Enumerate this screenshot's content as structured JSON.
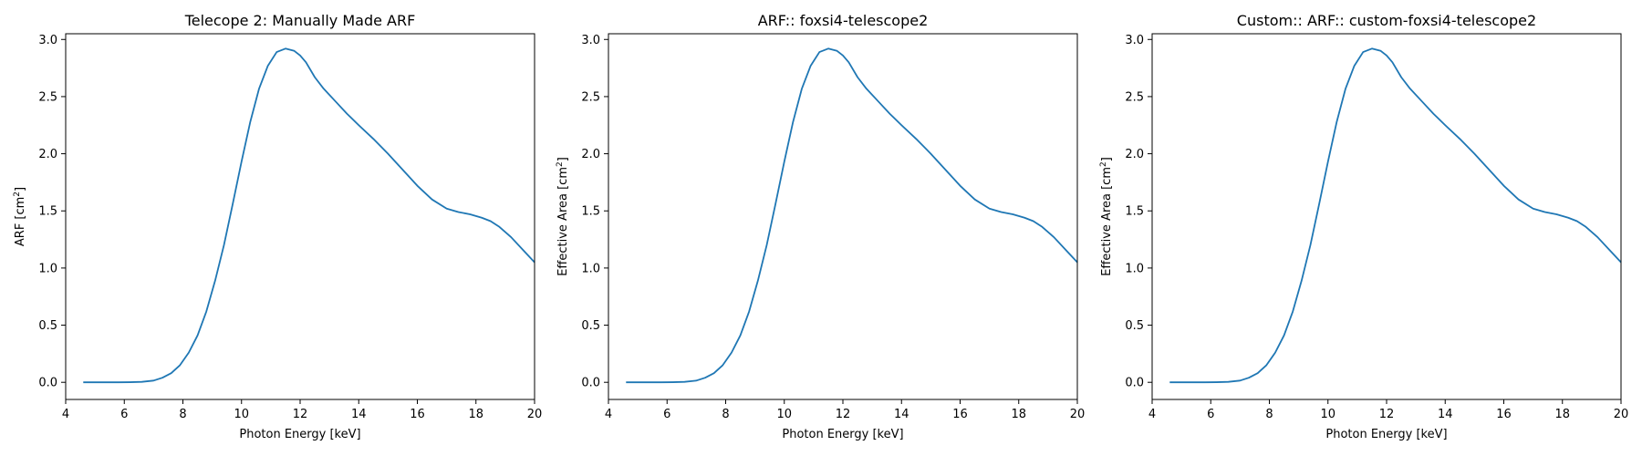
{
  "chart_data": [
    {
      "type": "line",
      "title": "Telecope 2: Manually Made ARF",
      "xlabel": "Photon Energy [keV]",
      "ylabel": "ARF [cm",
      "ylabel_sup": "2",
      "ylabel_end": "]",
      "xlim": [
        4,
        20
      ],
      "ylim": [
        -0.15,
        3.05
      ],
      "xticks": [
        4,
        6,
        8,
        10,
        12,
        14,
        16,
        18,
        20
      ],
      "yticks": [
        0.0,
        0.5,
        1.0,
        1.5,
        2.0,
        2.5,
        3.0
      ],
      "xtick_labels": [
        "4",
        "6",
        "8",
        "10",
        "12",
        "14",
        "16",
        "18",
        "20"
      ],
      "ytick_labels": [
        "0.0",
        "0.5",
        "1.0",
        "1.5",
        "2.0",
        "2.5",
        "3.0"
      ],
      "grid": false,
      "line_color": "#1f77b4",
      "series": [
        {
          "x": [
            4.6,
            5.0,
            5.4,
            5.8,
            6.2,
            6.6,
            7.0,
            7.3,
            7.6,
            7.9,
            8.2,
            8.5,
            8.8,
            9.1,
            9.4,
            9.7,
            10.0,
            10.3,
            10.6,
            10.9,
            11.2,
            11.5,
            11.8,
            12.0,
            12.2,
            12.5,
            12.8,
            13.2,
            13.6,
            14.0,
            14.5,
            15.0,
            15.5,
            16.0,
            16.5,
            17.0,
            17.4,
            17.8,
            18.2,
            18.5,
            18.8,
            19.2,
            19.6,
            20.0
          ],
          "y": [
            0.0,
            0.0,
            0.0,
            0.0,
            0.001,
            0.004,
            0.015,
            0.04,
            0.08,
            0.15,
            0.26,
            0.41,
            0.62,
            0.89,
            1.2,
            1.56,
            1.93,
            2.28,
            2.57,
            2.77,
            2.89,
            2.92,
            2.9,
            2.86,
            2.8,
            2.67,
            2.57,
            2.46,
            2.35,
            2.25,
            2.13,
            2.0,
            1.86,
            1.72,
            1.6,
            1.52,
            1.49,
            1.47,
            1.44,
            1.41,
            1.36,
            1.27,
            1.16,
            1.05
          ]
        }
      ]
    },
    {
      "type": "line",
      "title": "ARF:: foxsi4-telescope2",
      "xlabel": "Photon Energy [keV]",
      "ylabel": "Effective Area [cm",
      "ylabel_sup": "2",
      "ylabel_end": "]",
      "xlim": [
        4,
        20
      ],
      "ylim": [
        -0.15,
        3.05
      ],
      "xticks": [
        4,
        6,
        8,
        10,
        12,
        14,
        16,
        18,
        20
      ],
      "yticks": [
        0.0,
        0.5,
        1.0,
        1.5,
        2.0,
        2.5,
        3.0
      ],
      "xtick_labels": [
        "4",
        "6",
        "8",
        "10",
        "12",
        "14",
        "16",
        "18",
        "20"
      ],
      "ytick_labels": [
        "0.0",
        "0.5",
        "1.0",
        "1.5",
        "2.0",
        "2.5",
        "3.0"
      ],
      "grid": false,
      "line_color": "#1f77b4",
      "series": [
        {
          "x": [
            4.6,
            5.0,
            5.4,
            5.8,
            6.2,
            6.6,
            7.0,
            7.3,
            7.6,
            7.9,
            8.2,
            8.5,
            8.8,
            9.1,
            9.4,
            9.7,
            10.0,
            10.3,
            10.6,
            10.9,
            11.2,
            11.5,
            11.8,
            12.0,
            12.2,
            12.5,
            12.8,
            13.2,
            13.6,
            14.0,
            14.5,
            15.0,
            15.5,
            16.0,
            16.5,
            17.0,
            17.4,
            17.8,
            18.2,
            18.5,
            18.8,
            19.2,
            19.6,
            20.0
          ],
          "y": [
            0.0,
            0.0,
            0.0,
            0.0,
            0.001,
            0.004,
            0.015,
            0.04,
            0.08,
            0.15,
            0.26,
            0.41,
            0.62,
            0.89,
            1.2,
            1.56,
            1.93,
            2.28,
            2.57,
            2.77,
            2.89,
            2.92,
            2.9,
            2.86,
            2.8,
            2.67,
            2.57,
            2.46,
            2.35,
            2.25,
            2.13,
            2.0,
            1.86,
            1.72,
            1.6,
            1.52,
            1.49,
            1.47,
            1.44,
            1.41,
            1.36,
            1.27,
            1.16,
            1.05
          ]
        }
      ]
    },
    {
      "type": "line",
      "title": "Custom:: ARF:: custom-foxsi4-telescope2",
      "xlabel": "Photon Energy [keV]",
      "ylabel": "Effective Area [cm",
      "ylabel_sup": "2",
      "ylabel_end": "]",
      "xlim": [
        4,
        20
      ],
      "ylim": [
        -0.15,
        3.05
      ],
      "xticks": [
        4,
        6,
        8,
        10,
        12,
        14,
        16,
        18,
        20
      ],
      "yticks": [
        0.0,
        0.5,
        1.0,
        1.5,
        2.0,
        2.5,
        3.0
      ],
      "xtick_labels": [
        "4",
        "6",
        "8",
        "10",
        "12",
        "14",
        "16",
        "18",
        "20"
      ],
      "ytick_labels": [
        "0.0",
        "0.5",
        "1.0",
        "1.5",
        "2.0",
        "2.5",
        "3.0"
      ],
      "grid": false,
      "line_color": "#1f77b4",
      "series": [
        {
          "x": [
            4.6,
            5.0,
            5.4,
            5.8,
            6.2,
            6.6,
            7.0,
            7.3,
            7.6,
            7.9,
            8.2,
            8.5,
            8.8,
            9.1,
            9.4,
            9.7,
            10.0,
            10.3,
            10.6,
            10.9,
            11.2,
            11.5,
            11.8,
            12.0,
            12.2,
            12.5,
            12.8,
            13.2,
            13.6,
            14.0,
            14.5,
            15.0,
            15.5,
            16.0,
            16.5,
            17.0,
            17.4,
            17.8,
            18.2,
            18.5,
            18.8,
            19.2,
            19.6,
            20.0
          ],
          "y": [
            0.0,
            0.0,
            0.0,
            0.0,
            0.001,
            0.004,
            0.015,
            0.04,
            0.08,
            0.15,
            0.26,
            0.41,
            0.62,
            0.89,
            1.2,
            1.56,
            1.93,
            2.28,
            2.57,
            2.77,
            2.89,
            2.92,
            2.9,
            2.86,
            2.8,
            2.67,
            2.57,
            2.46,
            2.35,
            2.25,
            2.13,
            2.0,
            1.86,
            1.72,
            1.6,
            1.52,
            1.49,
            1.47,
            1.44,
            1.41,
            1.36,
            1.27,
            1.16,
            1.05
          ]
        }
      ]
    }
  ]
}
